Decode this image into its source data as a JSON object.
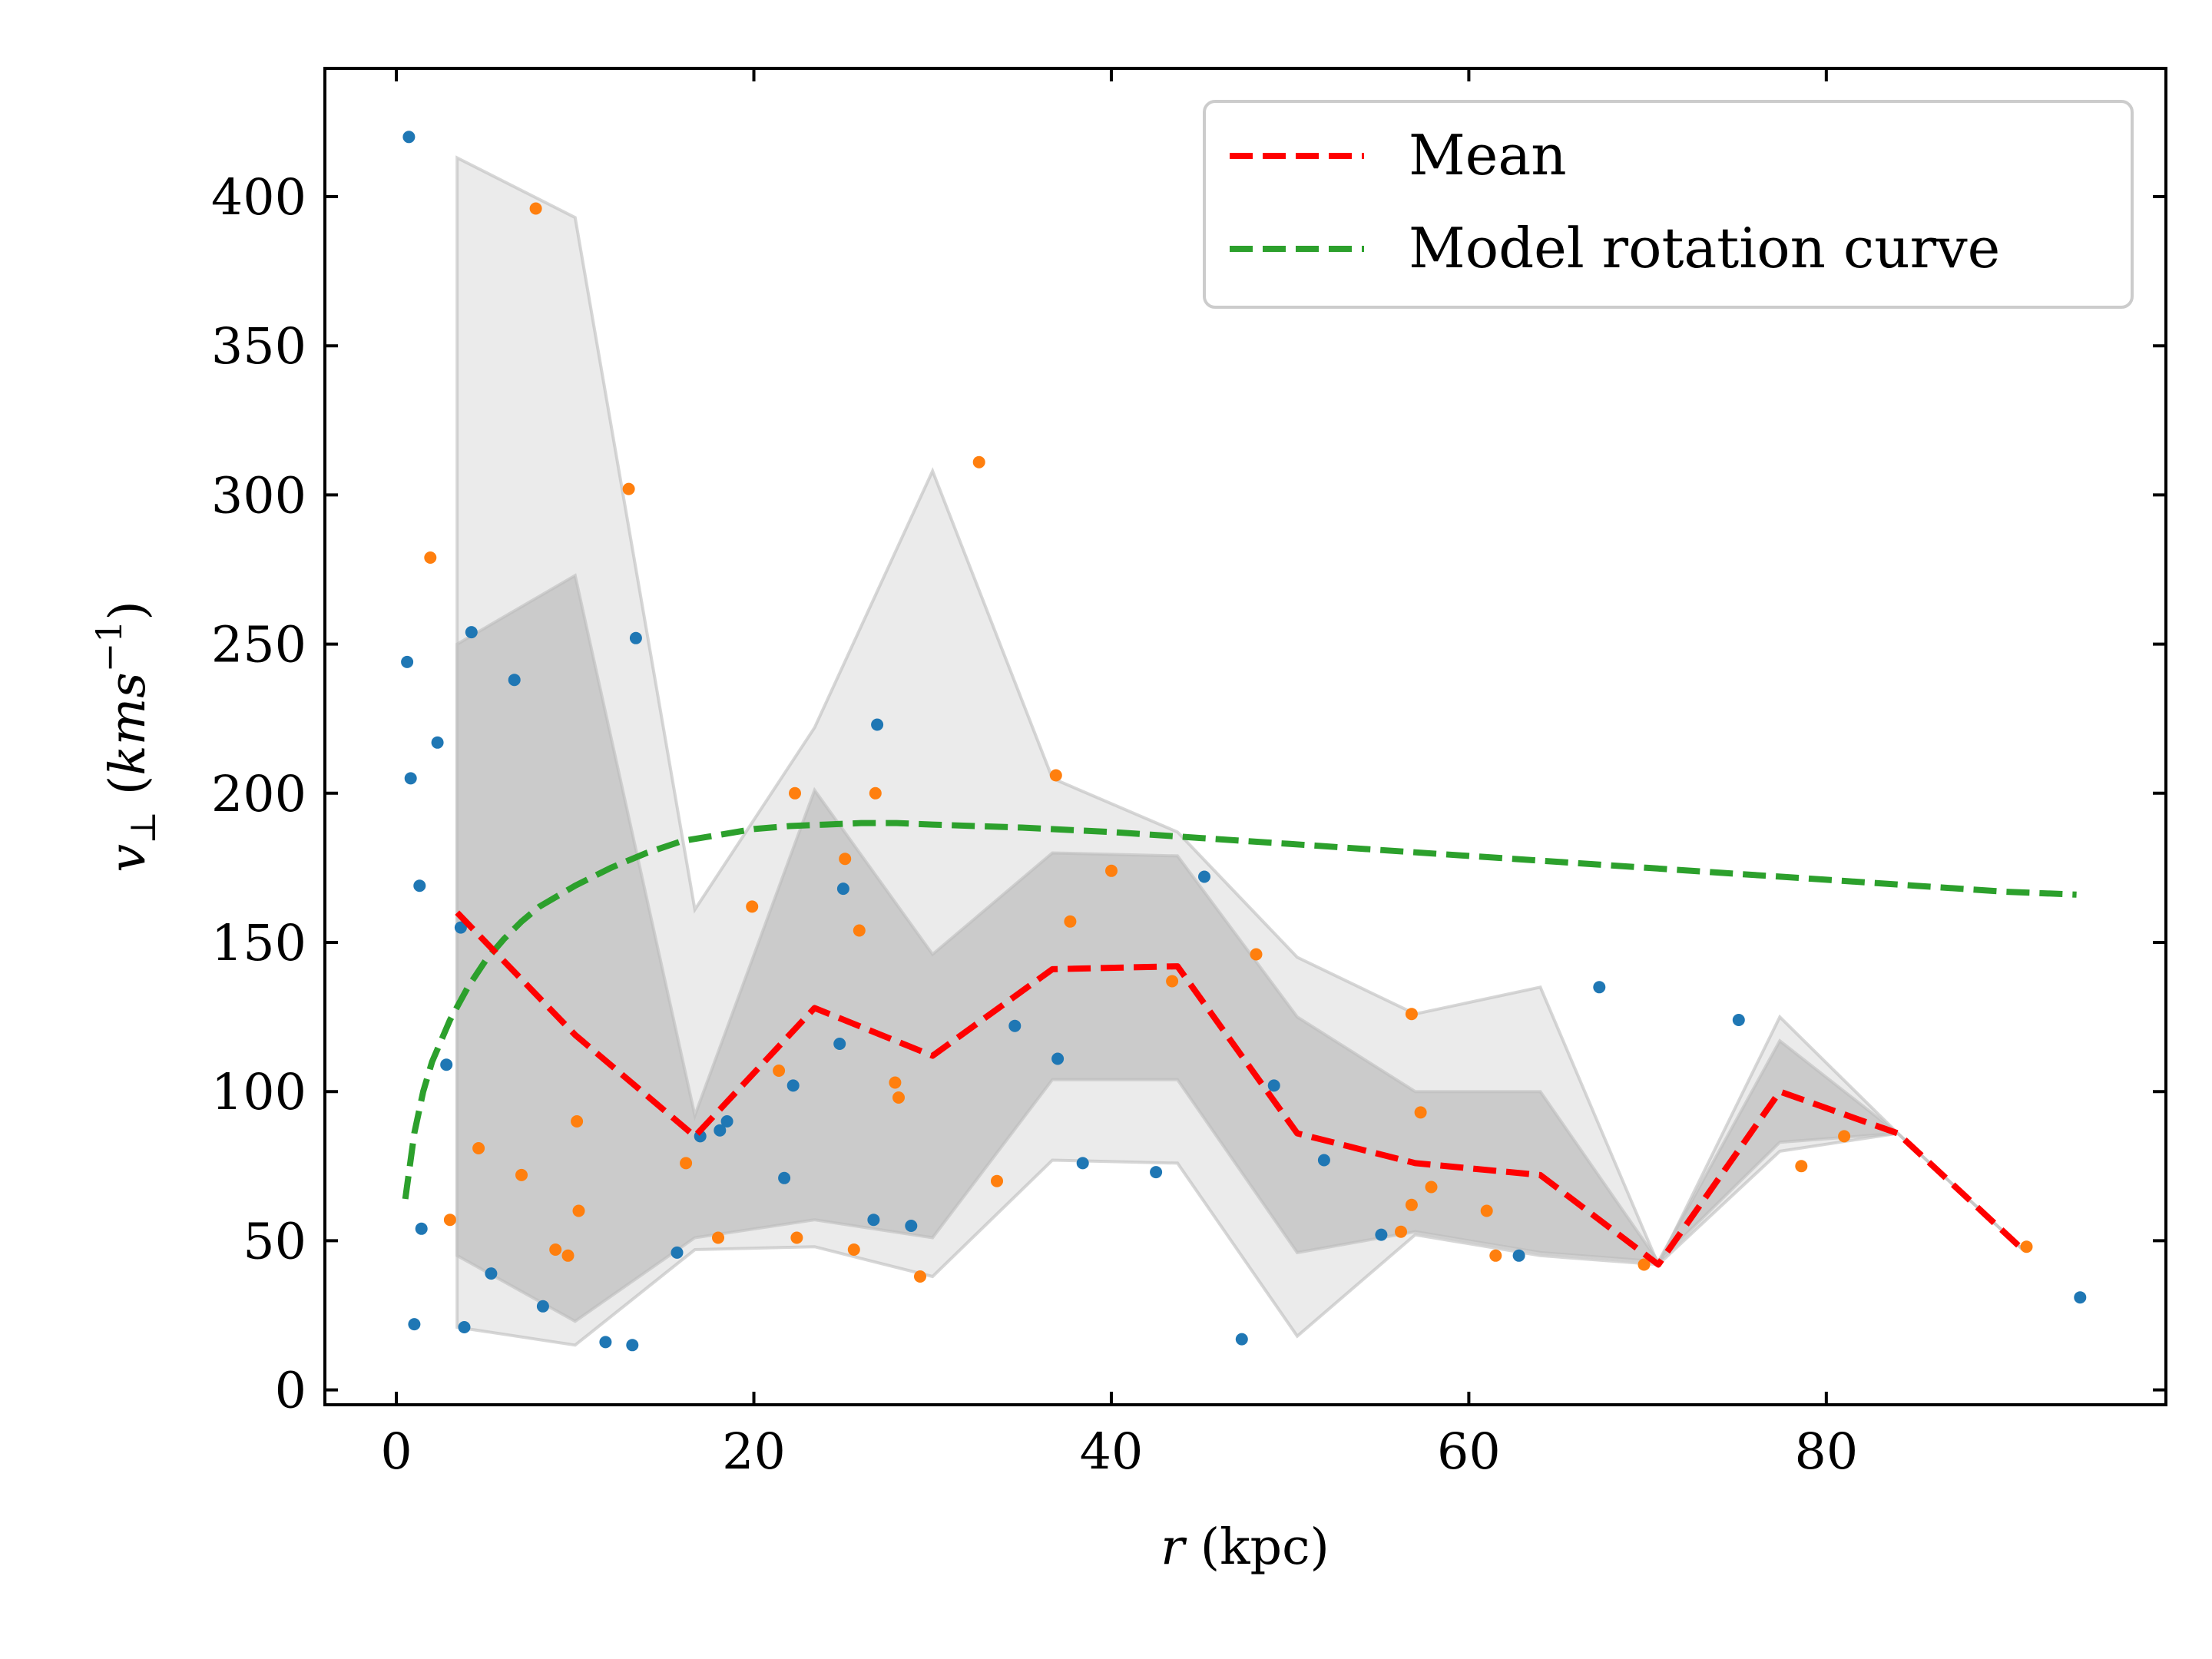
{
  "chart_data": {
    "type": "line",
    "xlabel": "r (kpc)",
    "xlabel_var": "r",
    "xlabel_unit": " (kpc)",
    "ylabel_var": "v",
    "ylabel_sub": "⊥",
    "ylabel_unit_pre": " (",
    "ylabel_unit_var": "kms",
    "ylabel_unit_exp": "−1",
    "ylabel_unit_post": ")",
    "xlim": [
      -4,
      99
    ],
    "ylim": [
      -5,
      443
    ],
    "xticks": [
      0,
      20,
      40,
      60,
      80
    ],
    "yticks": [
      0,
      50,
      100,
      150,
      200,
      250,
      300,
      350,
      400
    ],
    "grid": false,
    "legend": {
      "placement": "upper right",
      "entries": [
        {
          "label": "Mean",
          "color": "#ff0000"
        },
        {
          "label": "Model rotation curve",
          "color": "#2ca02c"
        }
      ]
    },
    "mean": {
      "name": "Mean",
      "color": "#ff0000",
      "x": [
        3.4,
        10.0,
        16.7,
        23.4,
        30.0,
        36.7,
        43.7,
        50.4,
        57.0,
        64.0,
        70.6,
        77.4,
        84.0,
        91.0
      ],
      "y": [
        160,
        119,
        85,
        128,
        112,
        141,
        142,
        86,
        76,
        72,
        42,
        100,
        86,
        47
      ]
    },
    "band_outer": {
      "color": "#ebebeb",
      "x": [
        3.4,
        10.0,
        16.7,
        23.4,
        30.0,
        36.7,
        43.7,
        50.4,
        57.0,
        64.0,
        70.6,
        77.4,
        84.0,
        91.0
      ],
      "upper": [
        413,
        393,
        161,
        222,
        308,
        205,
        187,
        145,
        126,
        135,
        42,
        125,
        86,
        47
      ],
      "lower": [
        21,
        15,
        47,
        48,
        38,
        77,
        76,
        18,
        52,
        45,
        42,
        80,
        86,
        47
      ]
    },
    "band_inner": {
      "color": "#cbcbcb",
      "x": [
        3.4,
        10.0,
        16.7,
        23.4,
        30.0,
        36.7,
        43.7,
        50.4,
        57.0,
        64.0,
        70.6,
        77.4,
        84.0,
        91.0
      ],
      "upper": [
        250,
        273,
        92,
        201,
        146,
        180,
        179,
        125,
        100,
        100,
        43,
        117,
        86,
        47
      ],
      "lower": [
        45,
        23,
        51,
        57,
        51,
        104,
        104,
        46,
        53,
        46,
        43,
        83,
        86,
        47
      ]
    },
    "model_rotation_curve": {
      "name": "Model rotation curve",
      "color": "#2ca02c",
      "x": [
        0.5,
        1,
        1.5,
        2,
        3,
        4,
        5,
        6,
        7,
        8,
        10,
        12,
        14,
        16,
        18,
        20,
        22,
        24,
        26,
        28,
        30,
        35,
        40,
        45,
        50,
        55,
        60,
        65,
        70,
        75,
        80,
        85,
        90,
        94
      ],
      "y": [
        64,
        86,
        100,
        110,
        124,
        135,
        144,
        151,
        157,
        162,
        169,
        175,
        180,
        184,
        186,
        188,
        189,
        189.5,
        190,
        190,
        189.5,
        188.5,
        187,
        185,
        183,
        181,
        179,
        177,
        175,
        173,
        171,
        169,
        167,
        166
      ]
    },
    "scatter_blue": {
      "color": "#1f77b4",
      "points": [
        [
          0.7,
          420
        ],
        [
          0.6,
          244
        ],
        [
          0.8,
          205
        ],
        [
          2.3,
          217
        ],
        [
          1.3,
          169
        ],
        [
          3.6,
          155
        ],
        [
          2.8,
          109
        ],
        [
          1.4,
          54
        ],
        [
          1.0,
          22
        ],
        [
          4.2,
          254
        ],
        [
          6.6,
          238
        ],
        [
          3.8,
          21
        ],
        [
          5.3,
          39
        ],
        [
          8.2,
          28
        ],
        [
          11.7,
          16
        ],
        [
          13.2,
          15
        ],
        [
          13.4,
          252
        ],
        [
          15.7,
          46
        ],
        [
          17.0,
          85
        ],
        [
          18.1,
          87
        ],
        [
          18.5,
          90
        ],
        [
          21.7,
          71
        ],
        [
          22.2,
          102
        ],
        [
          24.8,
          116
        ],
        [
          25.0,
          168
        ],
        [
          26.9,
          223
        ],
        [
          26.7,
          57
        ],
        [
          28.8,
          55
        ],
        [
          34.6,
          122
        ],
        [
          37.0,
          111
        ],
        [
          38.4,
          76
        ],
        [
          42.5,
          73
        ],
        [
          45.2,
          172
        ],
        [
          47.3,
          17
        ],
        [
          49.1,
          102
        ],
        [
          51.9,
          77
        ],
        [
          55.1,
          52
        ],
        [
          62.8,
          45
        ],
        [
          67.3,
          135
        ],
        [
          75.1,
          124
        ],
        [
          94.2,
          31
        ]
      ]
    },
    "scatter_orange": {
      "color": "#ff7f0e",
      "points": [
        [
          7.8,
          396
        ],
        [
          1.9,
          279
        ],
        [
          3.0,
          57
        ],
        [
          4.6,
          81
        ],
        [
          7.0,
          72
        ],
        [
          8.9,
          47
        ],
        [
          9.6,
          45
        ],
        [
          10.1,
          90
        ],
        [
          10.2,
          60
        ],
        [
          13.0,
          302
        ],
        [
          16.2,
          76
        ],
        [
          18.0,
          51
        ],
        [
          19.9,
          162
        ],
        [
          21.4,
          107
        ],
        [
          22.3,
          200
        ],
        [
          22.4,
          51
        ],
        [
          25.1,
          178
        ],
        [
          25.6,
          47
        ],
        [
          25.9,
          154
        ],
        [
          26.8,
          200
        ],
        [
          27.9,
          103
        ],
        [
          28.1,
          98
        ],
        [
          29.3,
          38
        ],
        [
          32.6,
          311
        ],
        [
          33.6,
          70
        ],
        [
          36.9,
          206
        ],
        [
          37.7,
          157
        ],
        [
          40.0,
          174
        ],
        [
          43.4,
          137
        ],
        [
          48.1,
          146
        ],
        [
          56.2,
          53
        ],
        [
          56.8,
          126
        ],
        [
          56.8,
          62
        ],
        [
          57.3,
          93
        ],
        [
          57.9,
          68
        ],
        [
          61.0,
          60
        ],
        [
          61.5,
          45
        ],
        [
          69.8,
          42
        ],
        [
          78.6,
          75
        ],
        [
          81.0,
          85
        ],
        [
          91.2,
          48
        ]
      ]
    }
  }
}
